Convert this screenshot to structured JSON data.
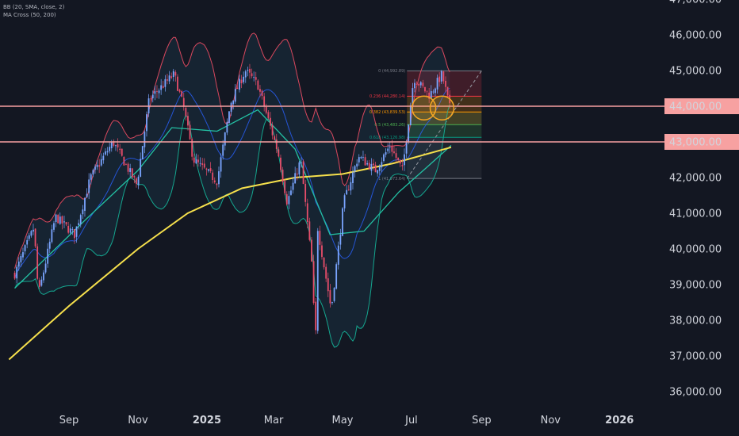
{
  "legend": {
    "bb": "BB (20, SMA, close, 2)",
    "ma_cross": "MA Cross (50, 200)"
  },
  "chart_data": {
    "type": "candlestick",
    "y_axis": {
      "ticks": [
        47000,
        46000,
        45000,
        44000,
        43000,
        42000,
        41000,
        40000,
        39000,
        38000,
        37000,
        36000
      ],
      "tick_labels": [
        "47,000.00",
        "46,000.00",
        "45,000.00",
        "44,000.00",
        "43,000.00",
        "42,000.00",
        "41,000.00",
        "40,000.00",
        "39,000.00",
        "38,000.00",
        "37,000.00",
        "36,000.00"
      ],
      "range": [
        35600,
        47100
      ]
    },
    "x_axis": {
      "labels": [
        {
          "label": "Sep",
          "bold": false
        },
        {
          "label": "Nov",
          "bold": false
        },
        {
          "label": "2025",
          "bold": true
        },
        {
          "label": "Mar",
          "bold": false
        },
        {
          "label": "May",
          "bold": false
        },
        {
          "label": "Jul",
          "bold": false
        },
        {
          "label": "Sep",
          "bold": false
        },
        {
          "label": "Nov",
          "bold": false
        },
        {
          "label": "2026",
          "bold": true
        }
      ]
    },
    "horizontal_levels": [
      {
        "value": 44000,
        "label": "44,000.00",
        "color": "#f7a1a1"
      },
      {
        "value": 43000,
        "label": "43,000.00",
        "color": "#f7a1a1"
      }
    ],
    "fibonacci": [
      {
        "level": "0",
        "price": "44,992.89",
        "color": "#787b86"
      },
      {
        "level": "0.236",
        "price": "44,280.14",
        "color": "#f23645"
      },
      {
        "level": "0.382",
        "price": "43,839.53",
        "color": "#ff9800"
      },
      {
        "level": "0.5",
        "price": "43,483.26",
        "color": "#4caf50"
      },
      {
        "level": "0.618",
        "price": "43,126.98",
        "color": "#089981"
      },
      {
        "level": "1",
        "price": "41,973.64",
        "color": "#787b86"
      }
    ],
    "price_path": [
      {
        "date": "2024-07-15",
        "value": 39300
      },
      {
        "date": "2024-08-01",
        "value": 40600
      },
      {
        "date": "2024-08-05",
        "value": 38700
      },
      {
        "date": "2024-08-20",
        "value": 40900
      },
      {
        "date": "2024-09-06",
        "value": 40400
      },
      {
        "date": "2024-09-20",
        "value": 42000
      },
      {
        "date": "2024-10-10",
        "value": 43000
      },
      {
        "date": "2024-10-31",
        "value": 41800
      },
      {
        "date": "2024-11-11",
        "value": 44200
      },
      {
        "date": "2024-12-03",
        "value": 44900
      },
      {
        "date": "2024-12-12",
        "value": 43900
      },
      {
        "date": "2024-12-20",
        "value": 42500
      },
      {
        "date": "2025-01-10",
        "value": 41900
      },
      {
        "date": "2025-01-22",
        "value": 44100
      },
      {
        "date": "2025-02-04",
        "value": 45000
      },
      {
        "date": "2025-02-15",
        "value": 44600
      },
      {
        "date": "2025-03-05",
        "value": 42700
      },
      {
        "date": "2025-03-13",
        "value": 41300
      },
      {
        "date": "2025-03-25",
        "value": 42500
      },
      {
        "date": "2025-04-04",
        "value": 39500
      },
      {
        "date": "2025-04-07",
        "value": 37200
      },
      {
        "date": "2025-04-09",
        "value": 40600
      },
      {
        "date": "2025-04-21",
        "value": 38300
      },
      {
        "date": "2025-05-02",
        "value": 41300
      },
      {
        "date": "2025-05-15",
        "value": 42600
      },
      {
        "date": "2025-05-30",
        "value": 42200
      },
      {
        "date": "2025-06-12",
        "value": 42900
      },
      {
        "date": "2025-06-23",
        "value": 42200
      },
      {
        "date": "2025-07-03",
        "value": 44800
      },
      {
        "date": "2025-07-17",
        "value": 44300
      },
      {
        "date": "2025-07-28",
        "value": 44900
      },
      {
        "date": "2025-08-05",
        "value": 43800
      }
    ],
    "sma50_path": [
      {
        "date": "2024-07-15",
        "value": 38900
      },
      {
        "date": "2024-09-15",
        "value": 40800
      },
      {
        "date": "2024-11-01",
        "value": 42200
      },
      {
        "date": "2024-12-01",
        "value": 43400
      },
      {
        "date": "2025-01-10",
        "value": 43300
      },
      {
        "date": "2025-02-15",
        "value": 43900
      },
      {
        "date": "2025-03-20",
        "value": 42800
      },
      {
        "date": "2025-04-20",
        "value": 40400
      },
      {
        "date": "2025-05-20",
        "value": 40500
      },
      {
        "date": "2025-06-20",
        "value": 41600
      },
      {
        "date": "2025-07-15",
        "value": 42300
      },
      {
        "date": "2025-08-05",
        "value": 42900
      }
    ],
    "sma200_path": [
      {
        "date": "2024-07-10",
        "value": 36900
      },
      {
        "date": "2024-09-01",
        "value": 38400
      },
      {
        "date": "2024-11-01",
        "value": 40000
      },
      {
        "date": "2024-12-15",
        "value": 41000
      },
      {
        "date": "2025-02-01",
        "value": 41700
      },
      {
        "date": "2025-03-20",
        "value": 42000
      },
      {
        "date": "2025-05-01",
        "value": 42100
      },
      {
        "date": "2025-06-15",
        "value": 42400
      },
      {
        "date": "2025-08-05",
        "value": 42850
      }
    ],
    "colors": {
      "background": "#131722",
      "up_candle": "#7aa5ff",
      "down_candle": "#e84d6a",
      "bb_upper": "#d9485e",
      "bb_lower": "#15a68f",
      "bb_basis": "#2962ff",
      "sma50": "#23c0a3",
      "sma200": "#f6e04c",
      "level_line": "#f7a1a1",
      "level_label_bg": "#f7a1a1",
      "axis_text": "#d1d4dc",
      "highlight_circle": "#f5a623"
    }
  }
}
